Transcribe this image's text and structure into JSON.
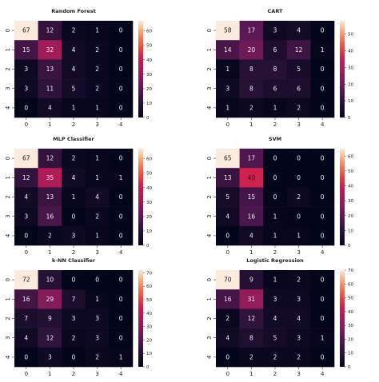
{
  "chart_data": [
    {
      "type": "heatmap",
      "title": "Random Forest",
      "x_ticks": [
        "0",
        "1",
        "2",
        "3",
        "4"
      ],
      "y_ticks": [
        "0",
        "1",
        "2",
        "3",
        "4"
      ],
      "matrix": [
        [
          67,
          12,
          2,
          1,
          0
        ],
        [
          15,
          32,
          4,
          2,
          0
        ],
        [
          3,
          13,
          4,
          2,
          0
        ],
        [
          3,
          11,
          5,
          2,
          0
        ],
        [
          0,
          4,
          1,
          1,
          0
        ]
      ],
      "colorbar": {
        "min": 0,
        "max": 67,
        "ticks": [
          "0",
          "10",
          "20",
          "30",
          "40",
          "50",
          "60"
        ],
        "tick_values": [
          0,
          10,
          20,
          30,
          40,
          50,
          60
        ]
      }
    },
    {
      "type": "heatmap",
      "title": "CART",
      "x_ticks": [
        "0",
        "1",
        "2",
        "3",
        "4"
      ],
      "y_ticks": [
        "0",
        "1",
        "2",
        "3",
        "4"
      ],
      "matrix": [
        [
          58,
          17,
          3,
          4,
          0
        ],
        [
          14,
          20,
          6,
          12,
          1
        ],
        [
          1,
          8,
          8,
          5,
          0
        ],
        [
          3,
          8,
          6,
          6,
          0
        ],
        [
          1,
          2,
          1,
          2,
          0
        ]
      ],
      "colorbar": {
        "min": 0,
        "max": 58,
        "ticks": [
          "0",
          "10",
          "20",
          "30",
          "40",
          "50"
        ],
        "tick_values": [
          0,
          10,
          20,
          30,
          40,
          50
        ]
      }
    },
    {
      "type": "heatmap",
      "title": "MLP Classifier",
      "x_ticks": [
        "0",
        "1",
        "2",
        "3",
        "4"
      ],
      "y_ticks": [
        "0",
        "1",
        "2",
        "3",
        "4"
      ],
      "matrix": [
        [
          67,
          12,
          2,
          1,
          0
        ],
        [
          12,
          35,
          4,
          1,
          1
        ],
        [
          4,
          13,
          1,
          4,
          0
        ],
        [
          3,
          16,
          0,
          2,
          0
        ],
        [
          0,
          2,
          3,
          1,
          0
        ]
      ],
      "colorbar": {
        "min": 0,
        "max": 67,
        "ticks": [
          "0",
          "10",
          "20",
          "30",
          "40",
          "50",
          "60"
        ],
        "tick_values": [
          0,
          10,
          20,
          30,
          40,
          50,
          60
        ]
      }
    },
    {
      "type": "heatmap",
      "title": "SVM",
      "x_ticks": [
        "0",
        "1",
        "2",
        "3",
        "4"
      ],
      "y_ticks": [
        "0",
        "1",
        "2",
        "3",
        "4"
      ],
      "matrix": [
        [
          65,
          17,
          0,
          0,
          0
        ],
        [
          13,
          40,
          0,
          0,
          0
        ],
        [
          5,
          15,
          0,
          2,
          0
        ],
        [
          4,
          16,
          1,
          0,
          0
        ],
        [
          0,
          4,
          1,
          1,
          0
        ]
      ],
      "colorbar": {
        "min": 0,
        "max": 65,
        "ticks": [
          "0",
          "10",
          "20",
          "30",
          "40",
          "50",
          "60"
        ],
        "tick_values": [
          0,
          10,
          20,
          30,
          40,
          50,
          60
        ]
      }
    },
    {
      "type": "heatmap",
      "title": "k-NN Classifier",
      "x_ticks": [
        "0",
        "1",
        "2",
        "3",
        "4"
      ],
      "y_ticks": [
        "0",
        "1",
        "2",
        "3",
        "4"
      ],
      "matrix": [
        [
          72,
          10,
          0,
          0,
          0
        ],
        [
          16,
          29,
          7,
          1,
          0
        ],
        [
          7,
          9,
          3,
          3,
          0
        ],
        [
          4,
          12,
          2,
          3,
          0
        ],
        [
          0,
          3,
          0,
          2,
          1
        ]
      ],
      "colorbar": {
        "min": 0,
        "max": 72,
        "ticks": [
          "0",
          "10",
          "20",
          "30",
          "40",
          "50",
          "60",
          "70"
        ],
        "tick_values": [
          0,
          10,
          20,
          30,
          40,
          50,
          60,
          70
        ]
      }
    },
    {
      "type": "heatmap",
      "title": "Logistic Regression",
      "x_ticks": [
        "0",
        "1",
        "2",
        "3",
        "4"
      ],
      "y_ticks": [
        "0",
        "1",
        "2",
        "3",
        "4"
      ],
      "matrix": [
        [
          70,
          9,
          1,
          2,
          0
        ],
        [
          16,
          31,
          3,
          3,
          0
        ],
        [
          2,
          12,
          4,
          4,
          0
        ],
        [
          4,
          8,
          5,
          3,
          1
        ],
        [
          0,
          2,
          2,
          2,
          0
        ]
      ],
      "colorbar": {
        "min": 0,
        "max": 70,
        "ticks": [
          "0",
          "10",
          "20",
          "30",
          "40",
          "50",
          "60",
          "70"
        ],
        "tick_values": [
          0,
          10,
          20,
          30,
          40,
          50,
          60,
          70
        ]
      }
    }
  ]
}
